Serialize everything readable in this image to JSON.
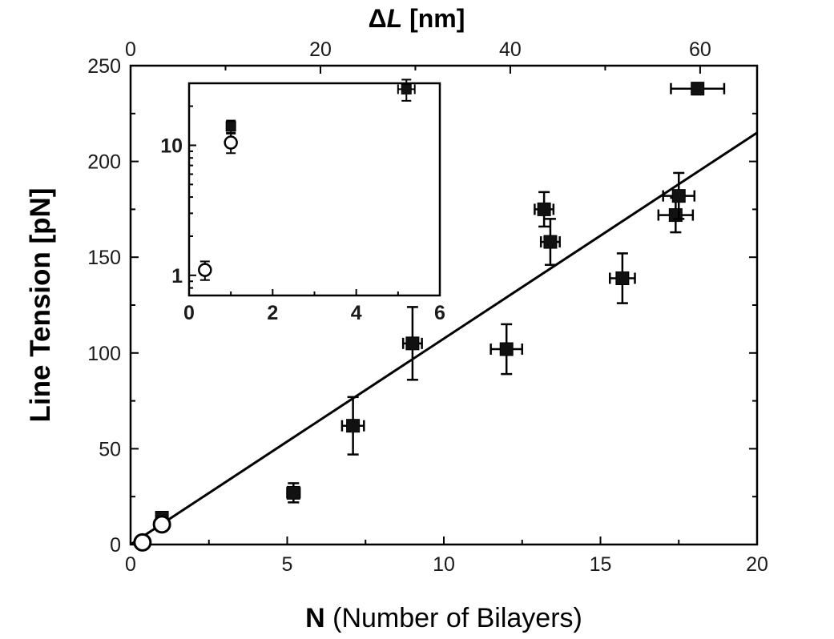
{
  "chart_data": [
    {
      "type": "scatter",
      "title": "",
      "xlabel_bold": "N",
      "xlabel_rest": " (Number of Bilayers)",
      "ylabel": "Line Tension [pN]",
      "top_xlabel_delta": "Δ",
      "top_xlabel_italic": "L",
      "top_xlabel_rest": " [nm]",
      "xlim": [
        0,
        20
      ],
      "ylim": [
        0,
        250
      ],
      "xticks": [
        0,
        5,
        10,
        15,
        20
      ],
      "yticks": [
        0,
        50,
        100,
        150,
        200,
        250
      ],
      "top_xlim": [
        0,
        66
      ],
      "top_xticks": [
        0,
        20,
        40,
        60
      ],
      "grid": false,
      "legend": "none",
      "series": [
        {
          "marker": "filled-square",
          "points": [
            {
              "x": 1.0,
              "y": 14,
              "xerr": 0.15,
              "yerr": 3
            },
            {
              "x": 5.2,
              "y": 27,
              "xerr": 0.2,
              "yerr": 5
            },
            {
              "x": 7.1,
              "y": 62,
              "xerr": 0.35,
              "yerr": 15
            },
            {
              "x": 9.0,
              "y": 105,
              "xerr": 0.3,
              "yerr": 19
            },
            {
              "x": 12.0,
              "y": 102,
              "xerr": 0.5,
              "yerr": 13
            },
            {
              "x": 13.2,
              "y": 175,
              "xerr": 0.3,
              "yerr": 9
            },
            {
              "x": 13.4,
              "y": 158,
              "xerr": 0.3,
              "yerr": 12
            },
            {
              "x": 15.7,
              "y": 139,
              "xerr": 0.4,
              "yerr": 13
            },
            {
              "x": 17.4,
              "y": 172,
              "xerr": 0.55,
              "yerr": 9
            },
            {
              "x": 17.5,
              "y": 182,
              "xerr": 0.5,
              "yerr": 12
            },
            {
              "x": 18.1,
              "y": 238,
              "xerr": 0.85,
              "yerr": 3
            }
          ]
        },
        {
          "marker": "open-circle",
          "points": [
            {
              "x": 0.38,
              "y": 1.1,
              "xerr": 0,
              "yerr": 0.5
            },
            {
              "x": 1.0,
              "y": 10.5,
              "xerr": 0.1,
              "yerr": 2
            }
          ]
        }
      ],
      "fit_line": {
        "x": [
          0,
          20
        ],
        "y": [
          0,
          215
        ]
      }
    },
    {
      "type": "scatter",
      "title": "",
      "xlim": [
        0,
        6
      ],
      "ylim": [
        0.7,
        30
      ],
      "yscale": "log",
      "xticks": [
        0,
        2,
        4,
        6
      ],
      "yticks": [
        1,
        10
      ],
      "grid": false,
      "legend": "none",
      "series": [
        {
          "marker": "filled-square",
          "points": [
            {
              "x": 1.0,
              "y": 14,
              "xerr": 0,
              "yerr": 1.5
            },
            {
              "x": 5.2,
              "y": 27,
              "xerr": 0.2,
              "yerr": 5
            }
          ]
        },
        {
          "marker": "open-circle",
          "points": [
            {
              "x": 0.38,
              "y": 1.1,
              "xerr": 0,
              "yerr": 0.18
            },
            {
              "x": 1.0,
              "y": 10.5,
              "xerr": 0,
              "yerr": 1.8
            }
          ]
        }
      ]
    }
  ]
}
